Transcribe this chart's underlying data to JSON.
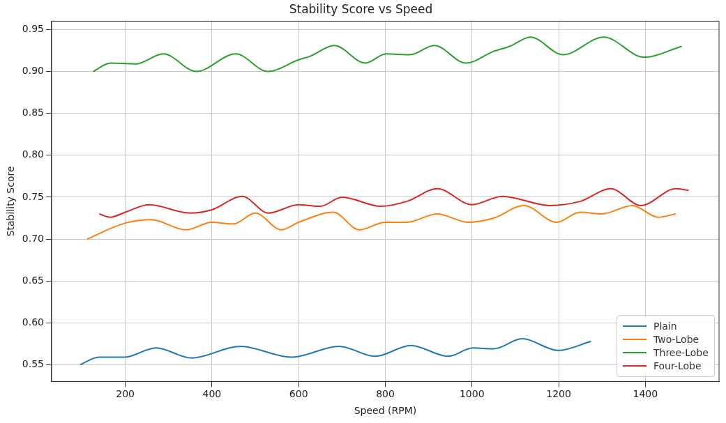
{
  "chart_data": {
    "type": "line",
    "title": "Stability Score vs Speed",
    "xlabel": "Speed (RPM)",
    "ylabel": "Stability Score",
    "xlim": [
      30,
      1570
    ],
    "xticks": [
      200,
      400,
      600,
      800,
      1000,
      1200,
      1400
    ],
    "ylim": [
      0.53,
      0.96
    ],
    "yticks": [
      0.55,
      {
        "value": 0.6,
        "label": "0.60"
      },
      0.65,
      {
        "value": 0.7,
        "label": "0.70"
      },
      0.75,
      {
        "value": 0.8,
        "label": "0.80"
      },
      0.85,
      {
        "value": 0.9,
        "label": "0.90"
      },
      0.95
    ],
    "grid": true,
    "legend": "bottom right",
    "marker": "none",
    "line_style": "solid",
    "series": [
      {
        "name": "Plain",
        "color": "#1f77b4",
        "x": [
          96,
          139,
          198,
          271,
          353,
          465,
          584,
          693,
          777,
          859,
          945,
          1002,
          1050,
          1116,
          1199,
          1275
        ],
        "values": [
          0.55,
          0.559,
          0.559,
          0.57,
          0.558,
          0.572,
          0.559,
          0.572,
          0.56,
          0.573,
          0.56,
          0.57,
          0.569,
          0.581,
          0.567,
          0.578
        ]
      },
      {
        "name": "Two-Lobe",
        "color": "#ff7f0e",
        "x": [
          112,
          200,
          260,
          340,
          400,
          450,
          500,
          560,
          600,
          680,
          740,
          800,
          850,
          920,
          990,
          1050,
          1120,
          1195,
          1250,
          1300,
          1370,
          1430,
          1470
        ],
        "values": [
          0.7,
          0.719,
          0.723,
          0.711,
          0.72,
          0.718,
          0.731,
          0.711,
          0.72,
          0.732,
          0.711,
          0.72,
          0.72,
          0.73,
          0.72,
          0.725,
          0.74,
          0.72,
          0.732,
          0.73,
          0.74,
          0.726,
          0.73
        ]
      },
      {
        "name": "Three-Lobe",
        "color": "#2ca02c",
        "x": [
          126,
          166,
          224,
          288,
          364,
          455,
          529,
          600,
          626,
          682,
          754,
          802,
          857,
          913,
          986,
          1050,
          1087,
          1135,
          1210,
          1304,
          1397,
          1484
        ],
        "values": [
          0.9,
          0.91,
          0.909,
          0.921,
          0.9,
          0.921,
          0.9,
          0.914,
          0.918,
          0.931,
          0.91,
          0.921,
          0.92,
          0.931,
          0.91,
          0.924,
          0.93,
          0.941,
          0.92,
          0.941,
          0.917,
          0.93
        ]
      },
      {
        "name": "Four-Lobe",
        "color": "#d62728",
        "x": [
          140,
          165,
          200,
          255,
          350,
          400,
          470,
          530,
          600,
          650,
          700,
          790,
          850,
          920,
          1000,
          1070,
          1180,
          1250,
          1320,
          1390,
          1470,
          1500
        ],
        "values": [
          0.73,
          0.726,
          0.732,
          0.741,
          0.731,
          0.735,
          0.751,
          0.731,
          0.741,
          0.739,
          0.75,
          0.739,
          0.745,
          0.76,
          0.741,
          0.751,
          0.74,
          0.745,
          0.76,
          0.74,
          0.76,
          0.758
        ]
      }
    ]
  }
}
